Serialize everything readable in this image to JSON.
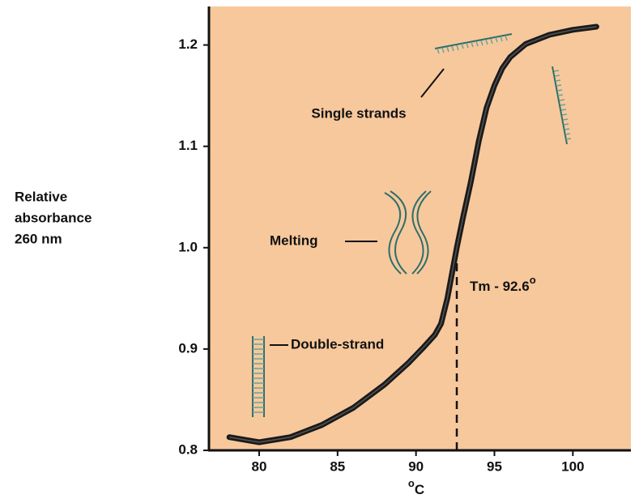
{
  "chart_data": {
    "type": "line",
    "y_label": [
      "Relative",
      "absorbance",
      "260 nm"
    ],
    "x_label": "C",
    "x_label_superscript": "o",
    "x": [
      78.1,
      80,
      82,
      84,
      86,
      88,
      89.5,
      90.5,
      91.2,
      91.6,
      92,
      92.3,
      92.6,
      93,
      93.5,
      94,
      94.5,
      95,
      95.5,
      96,
      97,
      98.5,
      100,
      101.5
    ],
    "values": [
      0.813,
      0.808,
      0.813,
      0.825,
      0.842,
      0.865,
      0.886,
      0.902,
      0.914,
      0.925,
      0.95,
      0.975,
      1.0,
      1.03,
      1.065,
      1.105,
      1.138,
      1.16,
      1.177,
      1.188,
      1.201,
      1.21,
      1.215,
      1.218
    ],
    "color": "#1a1a1a",
    "xlim": [
      76.8,
      103.7
    ],
    "ylim": [
      0.8,
      1.238
    ],
    "xticks": [
      80,
      85,
      90,
      95,
      100
    ],
    "yticks": [
      {
        "value": 0.8,
        "label": "0.8"
      },
      {
        "value": 0.9,
        "label": "0.9"
      },
      {
        "value": 1.0,
        "label": "1.0"
      },
      {
        "value": 1.1,
        "label": "1.1"
      },
      {
        "value": 1.2,
        "label": "1.2"
      }
    ],
    "background": "#f7c89c",
    "tm": {
      "x": 92.6,
      "label": "Tm - 92.6",
      "label_superscript": "o"
    },
    "annotations": [
      "Single strands",
      "Melting",
      "Double-strand"
    ]
  }
}
